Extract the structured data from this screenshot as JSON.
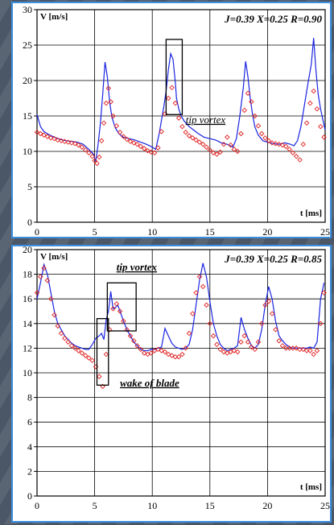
{
  "chart_data": [
    {
      "type": "line",
      "title": "J=0.39 X=0.25 R=0.90",
      "xlabel": "t [ms]",
      "ylabel": "V [m/s]",
      "xlim": [
        0,
        25
      ],
      "ylim": [
        0,
        30
      ],
      "xticks": [
        0,
        5,
        10,
        15,
        20,
        25
      ],
      "yticks": [
        0,
        5,
        10,
        15,
        20,
        25,
        30
      ],
      "grid": true,
      "colors": {
        "line": "#1a24e0",
        "markers": "#e02020"
      },
      "annotations": [
        {
          "text": "tip vortex",
          "x": 12.9,
          "y": 14.0,
          "box": [
            11.2,
            15.2,
            12.6,
            25.8
          ]
        }
      ],
      "series": [
        {
          "style": "line",
          "x": [
            0,
            0.3,
            0.6,
            1,
            1.5,
            2,
            2.5,
            3,
            3.5,
            4,
            4.5,
            4.9,
            5.1,
            5.3,
            5.5,
            5.7,
            5.9,
            6.1,
            6.3,
            6.5,
            6.8,
            7.1,
            7.5,
            8,
            8.5,
            9,
            9.5,
            10,
            10.3,
            10.6,
            11,
            11.2,
            11.4,
            11.6,
            11.8,
            12,
            12.1,
            12.3,
            12.5,
            12.8,
            13.2,
            13.6,
            14,
            14.5,
            15,
            15.5,
            16,
            16.5,
            17,
            17.3,
            17.6,
            17.9,
            18.1,
            18.3,
            18.5,
            18.7,
            18.9,
            19.2,
            19.6,
            20,
            20.5,
            21,
            21.5,
            22,
            22.3,
            22.6,
            22.9,
            23.2,
            23.5,
            23.8,
            24,
            24.2,
            24.4,
            24.6,
            24.8,
            25
          ],
          "y": [
            15.2,
            13.5,
            12.8,
            12.4,
            12.0,
            11.7,
            11.5,
            11.4,
            11.3,
            11.0,
            10.3,
            9.6,
            8.6,
            11.0,
            14.0,
            18.0,
            22.6,
            20.5,
            17.0,
            14.8,
            13.3,
            12.5,
            12.0,
            11.8,
            11.6,
            11.3,
            11.0,
            10.6,
            10.3,
            12.5,
            16.3,
            18.5,
            21.5,
            23.8,
            23.0,
            19.8,
            17.5,
            16.0,
            15.0,
            14.2,
            13.5,
            13.0,
            12.5,
            12.0,
            11.8,
            11.6,
            11.2,
            11.0,
            10.6,
            11.8,
            15.0,
            19.0,
            22.7,
            20.5,
            17.5,
            15.2,
            13.5,
            12.3,
            11.5,
            11.3,
            11.1,
            11.0,
            11.2,
            11.0,
            10.8,
            11.5,
            13.5,
            16.5,
            19.5,
            22.3,
            26.0,
            21.5,
            18.0,
            16.0,
            14.5,
            13.0
          ]
        },
        {
          "style": "markers",
          "x": [
            0,
            0.3,
            0.6,
            0.9,
            1.2,
            1.5,
            1.8,
            2.1,
            2.4,
            2.7,
            3.0,
            3.3,
            3.6,
            3.9,
            4.2,
            4.5,
            4.8,
            5.0,
            5.2,
            5.4,
            5.6,
            5.8,
            6.0,
            6.2,
            6.4,
            6.6,
            6.9,
            7.2,
            7.5,
            7.8,
            8.1,
            8.4,
            8.7,
            9.0,
            9.3,
            9.6,
            9.9,
            10.2,
            10.5,
            10.8,
            11.1,
            11.4,
            11.7,
            12.0,
            12.3,
            12.6,
            12.9,
            13.2,
            13.5,
            13.8,
            14.1,
            14.4,
            14.7,
            15.0,
            15.3,
            15.6,
            15.9,
            16.2,
            16.5,
            16.8,
            17.1,
            17.4,
            17.7,
            18.0,
            18.3,
            18.6,
            18.9,
            19.2,
            19.5,
            19.8,
            20.1,
            20.4,
            20.7,
            21.0,
            21.3,
            21.6,
            21.9,
            22.2,
            22.5,
            22.8,
            23.1,
            23.4,
            23.7,
            24.0,
            24.3,
            24.6,
            24.9
          ],
          "y": [
            12.7,
            12.5,
            12.3,
            12.1,
            11.9,
            11.8,
            11.6,
            11.5,
            11.4,
            11.3,
            11.2,
            11.1,
            10.9,
            10.6,
            10.2,
            9.8,
            9.3,
            8.7,
            8.3,
            9.2,
            11.5,
            14.0,
            16.8,
            18.9,
            17.0,
            15.0,
            13.6,
            12.7,
            12.1,
            11.7,
            11.4,
            11.2,
            11.0,
            10.7,
            10.4,
            10.1,
            9.9,
            9.8,
            10.5,
            12.8,
            15.3,
            17.5,
            19.0,
            16.8,
            14.7,
            13.5,
            12.7,
            12.2,
            11.9,
            11.6,
            11.3,
            11.0,
            10.6,
            10.2,
            9.8,
            9.6,
            9.9,
            11.0,
            12.0,
            10.9,
            10.3,
            10.0,
            12.5,
            15.8,
            18.2,
            17.0,
            15.0,
            13.6,
            12.5,
            11.9,
            11.5,
            11.2,
            11.1,
            11.0,
            10.9,
            10.7,
            10.3,
            9.8,
            9.3,
            8.8,
            11.0,
            14.0,
            16.8,
            18.5,
            16.0,
            13.5,
            12.0
          ]
        }
      ]
    },
    {
      "type": "line",
      "title": "J=0.39 X=0.25 R=0.85",
      "xlabel": "t [ms]",
      "ylabel": "V [m/s]",
      "xlim": [
        0,
        25
      ],
      "ylim": [
        0,
        20
      ],
      "xticks": [
        0,
        5,
        10,
        15,
        20,
        25
      ],
      "yticks": [
        0,
        2,
        4,
        6,
        8,
        10,
        12,
        14,
        16,
        18,
        20
      ],
      "grid": true,
      "colors": {
        "line": "#1a24e0",
        "markers": "#e02020"
      },
      "annotations": [
        {
          "text": "tip vortex",
          "x": 6.9,
          "y": 18.3,
          "box": [
            6.1,
            13.4,
            8.6,
            17.3
          ]
        },
        {
          "text": "wake of blade",
          "x": 7.2,
          "y": 8.9,
          "box": [
            5.2,
            9.0,
            6.2,
            14.4
          ]
        }
      ],
      "series": [
        {
          "style": "line",
          "x": [
            0,
            0.3,
            0.6,
            0.9,
            1.2,
            1.5,
            1.8,
            2.1,
            2.4,
            2.7,
            3.0,
            3.3,
            3.6,
            3.9,
            4.2,
            4.5,
            4.8,
            5.1,
            5.4,
            5.6,
            5.8,
            6.0,
            6.2,
            6.4,
            6.6,
            6.8,
            7.0,
            7.2,
            7.5,
            7.8,
            8.1,
            8.4,
            8.7,
            9.0,
            9.3,
            9.6,
            9.9,
            10.2,
            10.5,
            10.8,
            11.1,
            11.4,
            11.7,
            12.0,
            12.3,
            12.6,
            12.9,
            13.2,
            13.5,
            13.8,
            14.1,
            14.4,
            14.7,
            15.0,
            15.3,
            15.6,
            15.9,
            16.2,
            16.5,
            16.8,
            17.1,
            17.4,
            17.7,
            18.0,
            18.3,
            18.6,
            18.9,
            19.2,
            19.5,
            19.8,
            20.1,
            20.4,
            20.7,
            21.0,
            21.3,
            21.6,
            21.9,
            22.2,
            22.5,
            22.8,
            23.1,
            23.4,
            23.7,
            24.0,
            24.3,
            24.6,
            24.9
          ],
          "y": [
            16.0,
            17.3,
            18.8,
            18.0,
            16.5,
            15.0,
            14.0,
            13.5,
            13.0,
            12.7,
            12.4,
            12.2,
            12.1,
            12.0,
            11.9,
            11.9,
            12.3,
            12.8,
            13.0,
            13.2,
            12.7,
            14.3,
            15.0,
            16.6,
            15.2,
            15.3,
            15.5,
            15.0,
            14.2,
            13.5,
            13.0,
            12.5,
            12.2,
            11.9,
            11.8,
            11.8,
            11.9,
            11.9,
            12.0,
            12.1,
            13.6,
            13.0,
            12.4,
            12.1,
            12.0,
            11.9,
            12.0,
            12.3,
            13.5,
            15.5,
            17.5,
            18.9,
            17.8,
            15.8,
            14.0,
            13.0,
            12.3,
            12.0,
            11.8,
            11.9,
            12.0,
            12.2,
            14.5,
            13.5,
            12.8,
            12.2,
            12.0,
            12.3,
            13.5,
            15.5,
            17.0,
            16.0,
            14.2,
            13.0,
            12.6,
            12.3,
            12.1,
            12.0,
            12.0,
            12.0,
            12.0,
            12.0,
            12.1,
            12.0,
            12.5,
            16.0,
            17.3
          ]
        },
        {
          "style": "markers",
          "x": [
            0,
            0.3,
            0.6,
            0.9,
            1.2,
            1.5,
            1.8,
            2.1,
            2.4,
            2.7,
            3.0,
            3.3,
            3.6,
            3.9,
            4.2,
            4.5,
            4.8,
            5.1,
            5.4,
            5.7,
            6.0,
            6.3,
            6.6,
            6.9,
            7.2,
            7.5,
            7.8,
            8.1,
            8.4,
            8.7,
            9.0,
            9.3,
            9.6,
            9.9,
            10.2,
            10.5,
            10.8,
            11.1,
            11.4,
            11.7,
            12.0,
            12.3,
            12.6,
            12.9,
            13.2,
            13.5,
            13.8,
            14.1,
            14.4,
            14.7,
            15.0,
            15.3,
            15.6,
            15.9,
            16.2,
            16.5,
            16.8,
            17.1,
            17.4,
            17.7,
            18.0,
            18.3,
            18.6,
            18.9,
            19.2,
            19.5,
            19.8,
            20.1,
            20.4,
            20.7,
            21.0,
            21.3,
            21.6,
            21.9,
            22.2,
            22.5,
            22.8,
            23.1,
            23.4,
            23.7,
            24.0,
            24.3,
            24.6,
            24.9
          ],
          "y": [
            16.5,
            17.8,
            18.5,
            17.5,
            16.0,
            14.7,
            13.8,
            13.2,
            12.8,
            12.5,
            12.2,
            12.0,
            11.8,
            11.6,
            11.4,
            11.2,
            11.0,
            10.5,
            9.7,
            8.9,
            11.5,
            13.5,
            15.2,
            15.6,
            15.0,
            14.2,
            13.5,
            13.0,
            12.6,
            12.2,
            11.9,
            11.6,
            11.5,
            11.6,
            11.8,
            11.9,
            11.8,
            11.7,
            11.5,
            11.4,
            11.3,
            11.3,
            11.5,
            12.0,
            13.2,
            14.8,
            16.5,
            17.8,
            17.0,
            15.5,
            14.0,
            13.0,
            12.3,
            11.9,
            11.7,
            11.6,
            11.7,
            11.8,
            11.7,
            12.5,
            13.0,
            12.5,
            12.1,
            11.9,
            12.5,
            14.0,
            15.5,
            15.8,
            14.8,
            13.5,
            12.6,
            12.2,
            12.0,
            12.0,
            12.0,
            12.0,
            11.9,
            11.9,
            11.8,
            11.8,
            11.5,
            11.8,
            14.0,
            16.5
          ]
        }
      ]
    }
  ]
}
